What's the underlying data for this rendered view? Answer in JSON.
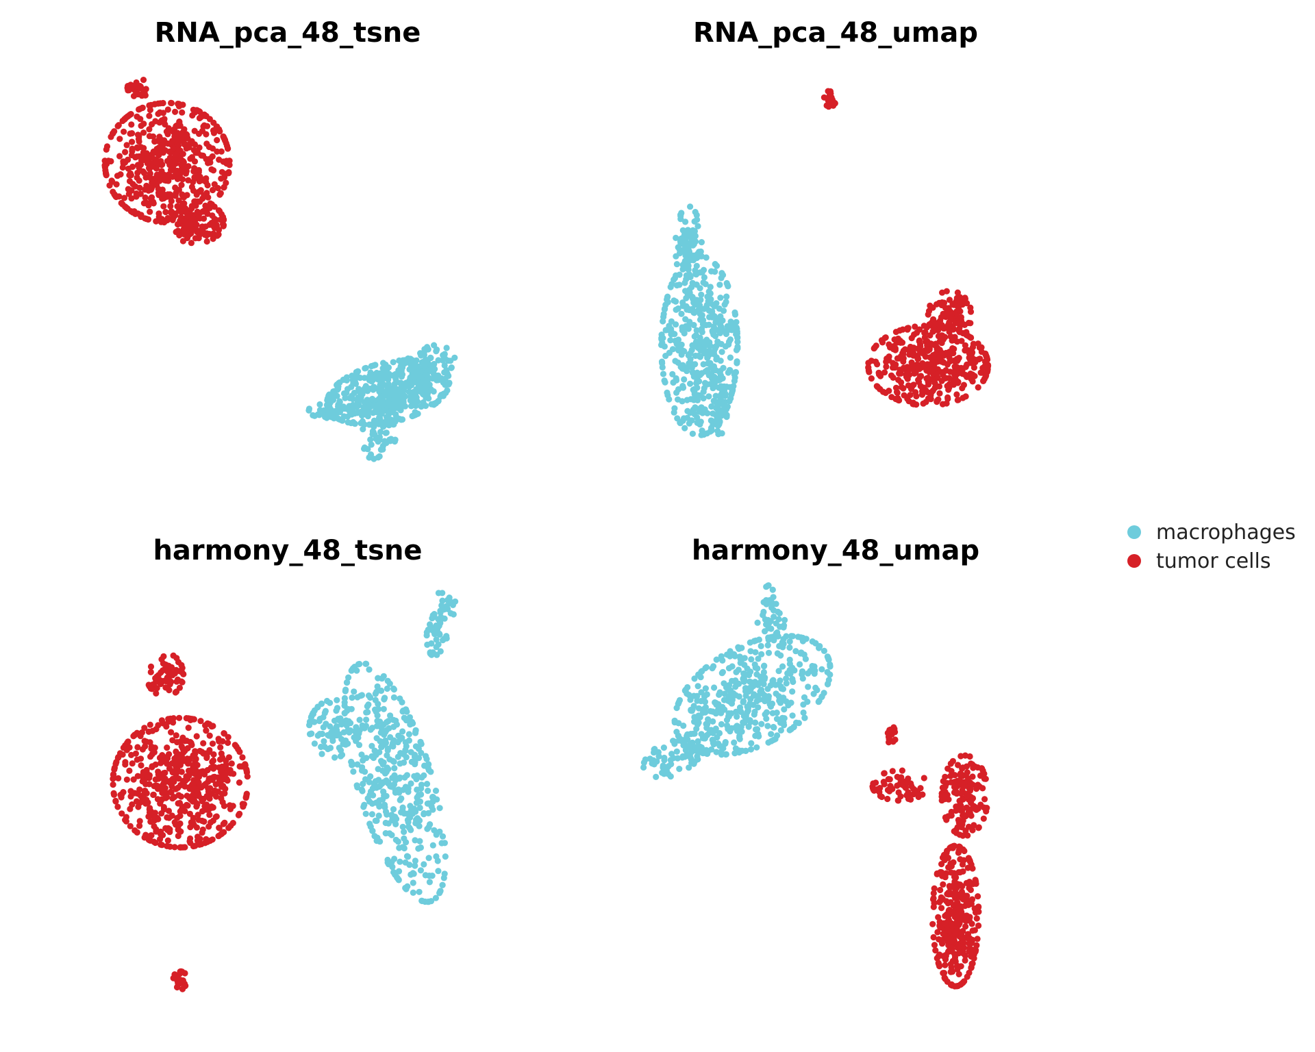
{
  "legend": [
    {
      "key": "macrophages",
      "label": "macrophages",
      "color": "#6ECCDC"
    },
    {
      "key": "tumor",
      "label": "tumor cells",
      "color": "#D62027"
    }
  ],
  "chart_data": [
    {
      "type": "scatter",
      "title": "RNA_pca_48_tsne",
      "xlabel": "",
      "ylabel": "",
      "grid": false,
      "series": [
        {
          "name": "macrophages",
          "color": "#6ECCDC",
          "clusters": [
            {
              "cx": 48,
              "cy": 47,
              "rx": 22,
              "ry": 10,
              "n": 420,
              "rot": -12
            },
            {
              "cx": 62,
              "cy": 38,
              "rx": 10,
              "ry": 6,
              "n": 90,
              "rot": -25
            },
            {
              "cx": 45,
              "cy": 60,
              "rx": 6,
              "ry": 10,
              "n": 60,
              "rot": 10
            },
            {
              "cx": 28,
              "cy": 53,
              "rx": 8,
              "ry": 3,
              "n": 50,
              "rot": 0
            }
          ]
        },
        {
          "name": "tumor cells",
          "color": "#D62027",
          "clusters": [
            {
              "cx": -30,
              "cy": -30,
              "rx": 22,
              "ry": 20,
              "n": 520,
              "rot": 0
            },
            {
              "cx": -20,
              "cy": -10,
              "rx": 10,
              "ry": 7,
              "n": 120,
              "rot": 0
            },
            {
              "cx": -40,
              "cy": -55,
              "rx": 4,
              "ry": 3,
              "n": 30,
              "rot": 0
            }
          ]
        }
      ],
      "xlim": [
        -60,
        85
      ],
      "ylim": [
        -62,
        78
      ]
    },
    {
      "type": "scatter",
      "title": "RNA_pca_48_umap",
      "xlabel": "",
      "ylabel": "",
      "grid": false,
      "series": [
        {
          "name": "macrophages",
          "color": "#6ECCDC",
          "clusters": [
            {
              "cx": -6,
              "cy": 4,
              "rx": 3.5,
              "ry": 9,
              "n": 420,
              "rot": 0
            },
            {
              "cx": -7,
              "cy": -6,
              "rx": 1.2,
              "ry": 4,
              "n": 70,
              "rot": 0
            },
            {
              "cx": -4,
              "cy": 10,
              "rx": 1,
              "ry": 3,
              "n": 50,
              "rot": 0
            }
          ]
        },
        {
          "name": "tumor cells",
          "color": "#D62027",
          "clusters": [
            {
              "cx": 15,
              "cy": 6,
              "rx": 5.5,
              "ry": 4,
              "n": 380,
              "rot": 0
            },
            {
              "cx": 17,
              "cy": 1,
              "rx": 2,
              "ry": 2.5,
              "n": 90,
              "rot": 0
            },
            {
              "cx": 6,
              "cy": -21,
              "rx": 0.6,
              "ry": 1,
              "n": 20,
              "rot": 0
            }
          ]
        }
      ],
      "xlim": [
        -13,
        26
      ],
      "ylim": [
        -24,
        18
      ]
    },
    {
      "type": "scatter",
      "title": "harmony_48_tsne",
      "xlabel": "",
      "ylabel": "",
      "grid": false,
      "series": [
        {
          "name": "macrophages",
          "color": "#6ECCDC",
          "clusters": [
            {
              "cx": 40,
              "cy": 5,
              "rx": 12,
              "ry": 35,
              "n": 420,
              "rot": -20
            },
            {
              "cx": 20,
              "cy": -10,
              "rx": 8,
              "ry": 8,
              "n": 80,
              "rot": 0
            },
            {
              "cx": 55,
              "cy": -40,
              "rx": 4,
              "ry": 10,
              "n": 60,
              "rot": 15
            }
          ]
        },
        {
          "name": "tumor cells",
          "color": "#D62027",
          "clusters": [
            {
              "cx": -30,
              "cy": 5,
              "rx": 22,
              "ry": 18,
              "n": 560,
              "rot": 0
            },
            {
              "cx": -35,
              "cy": -25,
              "rx": 6,
              "ry": 6,
              "n": 60,
              "rot": 0
            },
            {
              "cx": -30,
              "cy": 60,
              "rx": 2.5,
              "ry": 2.5,
              "n": 25,
              "rot": 0
            }
          ]
        }
      ],
      "xlim": [
        -62,
        72
      ],
      "ylim": [
        -50,
        70
      ]
    },
    {
      "type": "scatter",
      "title": "harmony_48_umap",
      "xlabel": "",
      "ylabel": "",
      "grid": false,
      "series": [
        {
          "name": "macrophages",
          "color": "#6ECCDC",
          "clusters": [
            {
              "cx": -2,
              "cy": -4,
              "rx": 9,
              "ry": 5,
              "n": 420,
              "rot": -25
            },
            {
              "cx": -10,
              "cy": 2,
              "rx": 4,
              "ry": 1.8,
              "n": 80,
              "rot": -20
            },
            {
              "cx": 0,
              "cy": -12,
              "rx": 1.5,
              "ry": 3,
              "n": 40,
              "rot": 0
            }
          ]
        },
        {
          "name": "tumor cells",
          "color": "#D62027",
          "clusters": [
            {
              "cx": 20,
              "cy": 18,
              "rx": 2.5,
              "ry": 7,
              "n": 330,
              "rot": 0
            },
            {
              "cx": 21,
              "cy": 6,
              "rx": 2.5,
              "ry": 4,
              "n": 150,
              "rot": 0
            },
            {
              "cx": 14,
              "cy": 5,
              "rx": 3,
              "ry": 1.5,
              "n": 60,
              "rot": 0
            },
            {
              "cx": 13,
              "cy": 0,
              "rx": 0.5,
              "ry": 1,
              "n": 15,
              "rot": 0
            }
          ]
        }
      ],
      "xlim": [
        -16,
        30
      ],
      "ylim": [
        -15,
        28
      ]
    }
  ]
}
